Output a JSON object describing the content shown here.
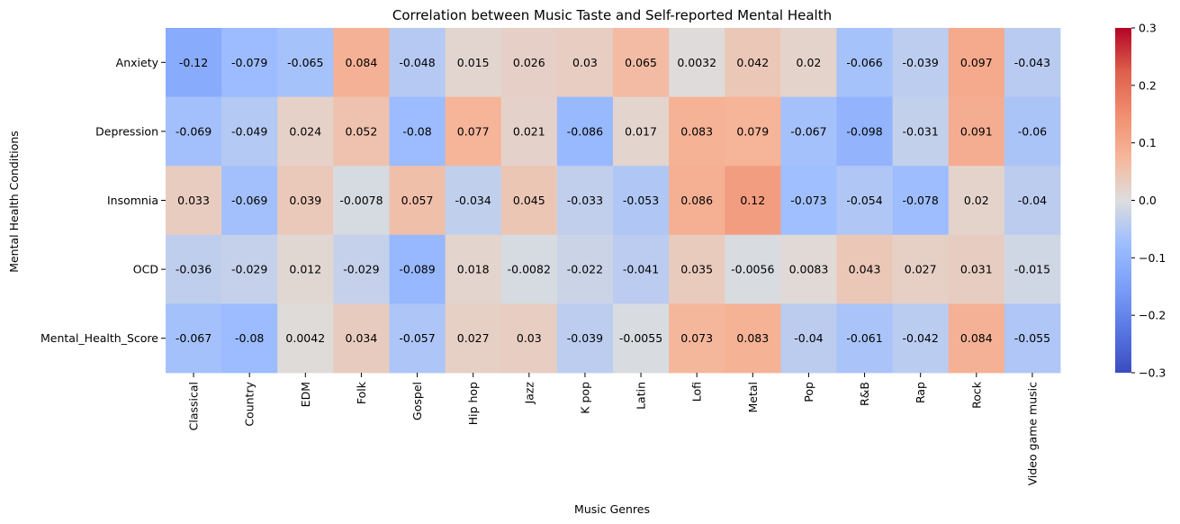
{
  "chart_data": {
    "type": "heatmap",
    "title": "Correlation between Music Taste and Self-reported Mental Health",
    "xlabel": "Music Genres",
    "ylabel": "Mental Health Conditions",
    "x_categories": [
      "Classical",
      "Country",
      "EDM",
      "Folk",
      "Gospel",
      "Hip hop",
      "Jazz",
      "K pop",
      "Latin",
      "Lofi",
      "Metal",
      "Pop",
      "R&B",
      "Rap",
      "Rock",
      "Video game music"
    ],
    "y_categories": [
      "Anxiety",
      "Depression",
      "Insomnia",
      "OCD",
      "Mental_Health_Score"
    ],
    "values": [
      [
        -0.12,
        -0.079,
        -0.065,
        0.084,
        -0.048,
        0.015,
        0.026,
        0.03,
        0.065,
        0.0032,
        0.042,
        0.02,
        -0.066,
        -0.039,
        0.097,
        -0.043
      ],
      [
        -0.069,
        -0.049,
        0.024,
        0.052,
        -0.08,
        0.077,
        0.021,
        -0.086,
        0.017,
        0.083,
        0.079,
        -0.067,
        -0.098,
        -0.031,
        0.091,
        -0.06
      ],
      [
        0.033,
        -0.069,
        0.039,
        -0.0078,
        0.057,
        -0.034,
        0.045,
        -0.033,
        -0.053,
        0.086,
        0.12,
        -0.073,
        -0.054,
        -0.078,
        0.02,
        -0.04
      ],
      [
        -0.036,
        -0.029,
        0.012,
        -0.029,
        -0.089,
        0.018,
        -0.0082,
        -0.022,
        -0.041,
        0.035,
        -0.0056,
        0.0083,
        0.043,
        0.027,
        0.031,
        -0.015
      ],
      [
        -0.067,
        -0.08,
        0.0042,
        0.034,
        -0.057,
        0.027,
        0.03,
        -0.039,
        -0.0055,
        0.073,
        0.083,
        -0.04,
        -0.061,
        -0.042,
        0.084,
        -0.055
      ]
    ],
    "annotations": [
      [
        "-0.12",
        "-0.079",
        "-0.065",
        "0.084",
        "-0.048",
        "0.015",
        "0.026",
        "0.03",
        "0.065",
        "0.0032",
        "0.042",
        "0.02",
        "-0.066",
        "-0.039",
        "0.097",
        "-0.043"
      ],
      [
        "-0.069",
        "-0.049",
        "0.024",
        "0.052",
        "-0.08",
        "0.077",
        "0.021",
        "-0.086",
        "0.017",
        "0.083",
        "0.079",
        "-0.067",
        "-0.098",
        "-0.031",
        "0.091",
        "-0.06"
      ],
      [
        "0.033",
        "-0.069",
        "0.039",
        "-0.0078",
        "0.057",
        "-0.034",
        "0.045",
        "-0.033",
        "-0.053",
        "0.086",
        "0.12",
        "-0.073",
        "-0.054",
        "-0.078",
        "0.02",
        "-0.04"
      ],
      [
        "-0.036",
        "-0.029",
        "0.012",
        "-0.029",
        "-0.089",
        "0.018",
        "-0.0082",
        "-0.022",
        "-0.041",
        "0.035",
        "-0.0056",
        "0.0083",
        "0.043",
        "0.027",
        "0.031",
        "-0.015"
      ],
      [
        "-0.067",
        "-0.08",
        "0.0042",
        "0.034",
        "-0.057",
        "0.027",
        "0.03",
        "-0.039",
        "-0.0055",
        "0.073",
        "0.083",
        "-0.04",
        "-0.061",
        "-0.042",
        "0.084",
        "-0.055"
      ]
    ],
    "colormap": "coolwarm",
    "vmin": -0.3,
    "vmax": 0.3,
    "colorbar_ticks": [
      0.3,
      0.2,
      0.1,
      0.0,
      -0.1,
      -0.2,
      -0.3
    ],
    "colorbar_tick_labels": [
      "0.3",
      "0.2",
      "0.1",
      "0.0",
      "−0.1",
      "−0.2",
      "−0.3"
    ],
    "grid": false,
    "legend": "colorbar-right"
  }
}
